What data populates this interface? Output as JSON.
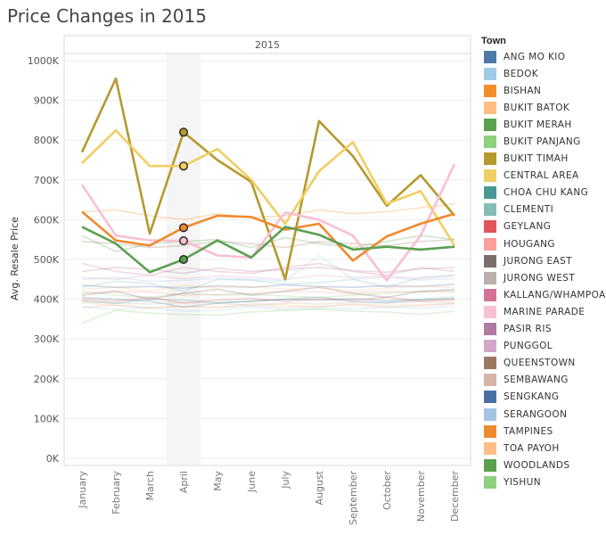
{
  "title": "Price Changes in 2015",
  "chart_data": {
    "type": "line",
    "panel_header": "2015",
    "ylabel": "Avg. Resale Price",
    "xlabel": "",
    "ylim": [
      0,
      1000000
    ],
    "yticks": [
      0,
      100000,
      200000,
      300000,
      400000,
      500000,
      600000,
      700000,
      800000,
      900000,
      1000000
    ],
    "yticklabels": [
      "0K",
      "100K",
      "200K",
      "300K",
      "400K",
      "500K",
      "600K",
      "700K",
      "800K",
      "900K",
      "1000K"
    ],
    "categories": [
      "January",
      "February",
      "March",
      "April",
      "May",
      "June",
      "July",
      "August",
      "September",
      "October",
      "November",
      "December"
    ],
    "grid": "horizontal",
    "legend_position": "right",
    "legend_title": "Town",
    "highlighted_category": "April",
    "highlight_color": "#ff8c1a",
    "series": [
      {
        "name": "ANG MO KIO",
        "color": "#4e79a7",
        "highlighted": false,
        "values": [
          405000,
          400000,
          395000,
          380000,
          390000,
          395000,
          400000,
          405000,
          395000,
          392000,
          398000,
          400000
        ]
      },
      {
        "name": "BEDOK",
        "color": "#a0cbe8",
        "highlighted": false,
        "values": [
          380000,
          375000,
          378000,
          370000,
          372000,
          380000,
          375000,
          378000,
          376000,
          380000,
          378000,
          382000
        ]
      },
      {
        "name": "BISHAN",
        "color": "#f28e2b",
        "highlighted": false,
        "values": [
          620000,
          625000,
          610000,
          600000,
          615000,
          605000,
          610000,
          625000,
          615000,
          620000,
          630000,
          640000
        ]
      },
      {
        "name": "BUKIT BATOK",
        "color": "#ffbe7d",
        "highlighted": false,
        "values": [
          390000,
          385000,
          380000,
          382000,
          378000,
          390000,
          385000,
          380000,
          388000,
          384000,
          386000,
          390000
        ]
      },
      {
        "name": "BUKIT MERAH",
        "color": "#59a14f",
        "highlighted": false,
        "values": [
          560000,
          520000,
          540000,
          545000,
          550000,
          530000,
          555000,
          540000,
          530000,
          545000,
          560000,
          550000
        ]
      },
      {
        "name": "BUKIT PANJANG",
        "color": "#8cd17d",
        "highlighted": false,
        "values": [
          420000,
          410000,
          405000,
          415000,
          410000,
          412000,
          408000,
          405000,
          410000,
          415000,
          420000,
          418000
        ]
      },
      {
        "name": "BUKIT TIMAH",
        "color": "#b6992d",
        "highlighted": true,
        "values": [
          770000,
          955000,
          565000,
          820000,
          750000,
          695000,
          450000,
          848000,
          760000,
          635000,
          712000,
          610000
        ]
      },
      {
        "name": "CENTRAL AREA",
        "color": "#f1ce63",
        "highlighted": true,
        "values": [
          742000,
          825000,
          735000,
          735000,
          778000,
          700000,
          590000,
          722000,
          795000,
          640000,
          672000,
          535000
        ]
      },
      {
        "name": "CHOA CHU KANG",
        "color": "#499894",
        "highlighted": false,
        "values": [
          395000,
          390000,
          400000,
          398000,
          392000,
          395000,
          400000,
          398000,
          402000,
          396000,
          400000,
          405000
        ]
      },
      {
        "name": "CLEMENTI",
        "color": "#86bcb6",
        "highlighted": false,
        "values": [
          430000,
          445000,
          440000,
          420000,
          450000,
          448000,
          438000,
          442000,
          450000,
          430000,
          455000,
          460000
        ]
      },
      {
        "name": "GEYLANG",
        "color": "#e15759",
        "highlighted": false,
        "values": [
          400000,
          395000,
          405000,
          390000,
          398000,
          402000,
          395000,
          400000,
          398000,
          405000,
          395000,
          400000
        ]
      },
      {
        "name": "HOUGANG",
        "color": "#ff9d9a",
        "highlighted": false,
        "values": [
          415000,
          420000,
          418000,
          410000,
          412000,
          415000,
          420000,
          418000,
          415000,
          420000,
          418000,
          422000
        ]
      },
      {
        "name": "JURONG EAST",
        "color": "#79706e",
        "highlighted": false,
        "values": [
          410000,
          420000,
          400000,
          415000,
          425000,
          410000,
          420000,
          430000,
          415000,
          405000,
          420000,
          425000
        ]
      },
      {
        "name": "JURONG WEST",
        "color": "#bab0ac",
        "highlighted": false,
        "values": [
          395000,
          390000,
          388000,
          392000,
          390000,
          385000,
          390000,
          388000,
          392000,
          390000,
          394000,
          392000
        ]
      },
      {
        "name": "KALLANG/WHAMPOA",
        "color": "#d37295",
        "highlighted": false,
        "values": [
          490000,
          470000,
          460000,
          480000,
          470000,
          465000,
          480000,
          490000,
          470000,
          460000,
          480000,
          470000
        ]
      },
      {
        "name": "MARINE PARADE",
        "color": "#fabfd2",
        "highlighted": true,
        "values": [
          688000,
          560000,
          548000,
          547000,
          510000,
          505000,
          618000,
          600000,
          560000,
          447000,
          560000,
          740000
        ]
      },
      {
        "name": "PASIR RIS",
        "color": "#b07aa1",
        "highlighted": false,
        "values": [
          470000,
          480000,
          475000,
          465000,
          478000,
          470000,
          475000,
          480000,
          472000,
          468000,
          476000,
          480000
        ]
      },
      {
        "name": "PUNGGOL",
        "color": "#d4a6c8",
        "highlighted": false,
        "values": [
          455000,
          450000,
          460000,
          452000,
          458000,
          455000,
          450000,
          460000,
          455000,
          458000,
          452000,
          460000
        ]
      },
      {
        "name": "QUEENSTOWN",
        "color": "#9d7660",
        "highlighted": false,
        "values": [
          545000,
          540000,
          530000,
          535000,
          545000,
          540000,
          530000,
          545000,
          540000,
          535000,
          545000,
          550000
        ]
      },
      {
        "name": "SEMBAWANG",
        "color": "#d7b5a6",
        "highlighted": false,
        "values": [
          380000,
          385000,
          378000,
          382000,
          380000,
          384000,
          380000,
          382000,
          386000,
          380000,
          384000,
          388000
        ]
      },
      {
        "name": "SENGKANG",
        "color": "#4a6fa5",
        "highlighted": false,
        "values": [
          435000,
          430000,
          432000,
          428000,
          434000,
          430000,
          436000,
          432000,
          430000,
          434000,
          432000,
          438000
        ]
      },
      {
        "name": "SERANGOON",
        "color": "#a3c4e6",
        "highlighted": false,
        "values": [
          450000,
          455000,
          445000,
          448000,
          452000,
          450000,
          446000,
          510000,
          450000,
          455000,
          448000,
          452000
        ]
      },
      {
        "name": "TAMPINES",
        "color": "#ef8a2e",
        "highlighted": true,
        "values": [
          620000,
          548000,
          535000,
          580000,
          610000,
          607000,
          575000,
          590000,
          497000,
          558000,
          590000,
          615000
        ]
      },
      {
        "name": "TOA PAYOH",
        "color": "#ffbf85",
        "highlighted": false,
        "values": [
          425000,
          430000,
          420000,
          435000,
          428000,
          432000,
          425000,
          430000,
          420000,
          428000,
          432000,
          430000
        ]
      },
      {
        "name": "WOODLANDS",
        "color": "#59a14f",
        "highlighted": true,
        "values": [
          582000,
          540000,
          468000,
          500000,
          548000,
          505000,
          582000,
          562000,
          525000,
          532000,
          525000,
          532000
        ]
      },
      {
        "name": "YISHUN",
        "color": "#8cd17d",
        "highlighted": false,
        "values": [
          340000,
          372000,
          365000,
          362000,
          360000,
          368000,
          372000,
          375000,
          370000,
          368000,
          362000,
          370000
        ]
      }
    ]
  }
}
